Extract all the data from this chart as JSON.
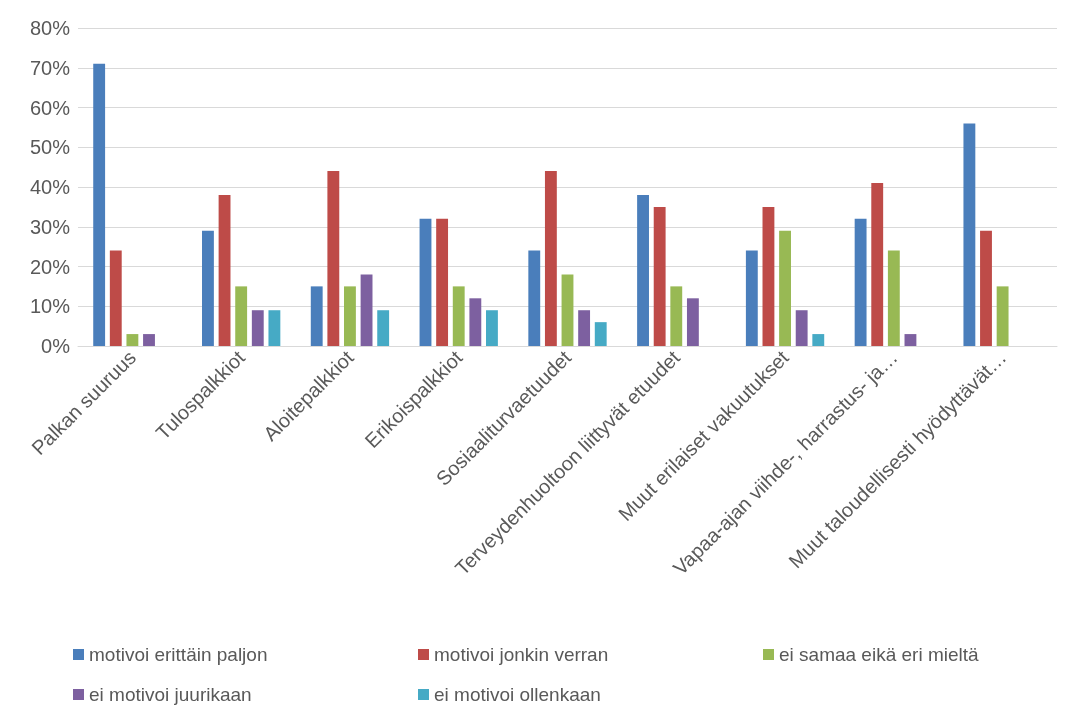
{
  "chart_data": {
    "type": "bar",
    "categories": [
      "Palkan suuruus",
      "Tulospalkkiot",
      "Aloitepalkkiot",
      "Erikoispalkkiot",
      "Sosiaaliturvaetuudet",
      "Terveydenhuoltoon liittyvät etuudet",
      "Muut erilaiset vakuutukset",
      "Vapaa-ajan viihde-, harrastus- ja…",
      "Muut taloudellisesti hyödyttävät…"
    ],
    "series": [
      {
        "name": "motivoi erittäin paljon",
        "color": "#4a7ebb",
        "values": [
          71,
          29,
          15,
          32,
          24,
          38,
          24,
          32,
          56
        ]
      },
      {
        "name": "motivoi jonkin verran",
        "color": "#be4b48",
        "values": [
          24,
          38,
          44,
          32,
          44,
          35,
          35,
          41,
          29
        ]
      },
      {
        "name": "ei samaa eikä eri mieltä",
        "color": "#98b954",
        "values": [
          3,
          15,
          15,
          15,
          18,
          15,
          29,
          24,
          15
        ]
      },
      {
        "name": "ei motivoi juurikaan",
        "color": "#7d60a0",
        "values": [
          3,
          9,
          18,
          12,
          9,
          12,
          9,
          3,
          0
        ]
      },
      {
        "name": "ei motivoi ollenkaan",
        "color": "#46aac5",
        "values": [
          0,
          9,
          9,
          9,
          6,
          0,
          3,
          0,
          0
        ]
      }
    ],
    "ylim": [
      0,
      80
    ],
    "yticks": [
      {
        "value": 0,
        "label": "0%"
      },
      {
        "value": 10,
        "label": "10%"
      },
      {
        "value": 20,
        "label": "20%"
      },
      {
        "value": 30,
        "label": "30%"
      },
      {
        "value": 40,
        "label": "40%"
      },
      {
        "value": 50,
        "label": "50%"
      },
      {
        "value": 60,
        "label": "60%"
      },
      {
        "value": 70,
        "label": "70%"
      },
      {
        "value": 80,
        "label": "80%"
      }
    ],
    "grid": "y",
    "legend": "bottom"
  }
}
